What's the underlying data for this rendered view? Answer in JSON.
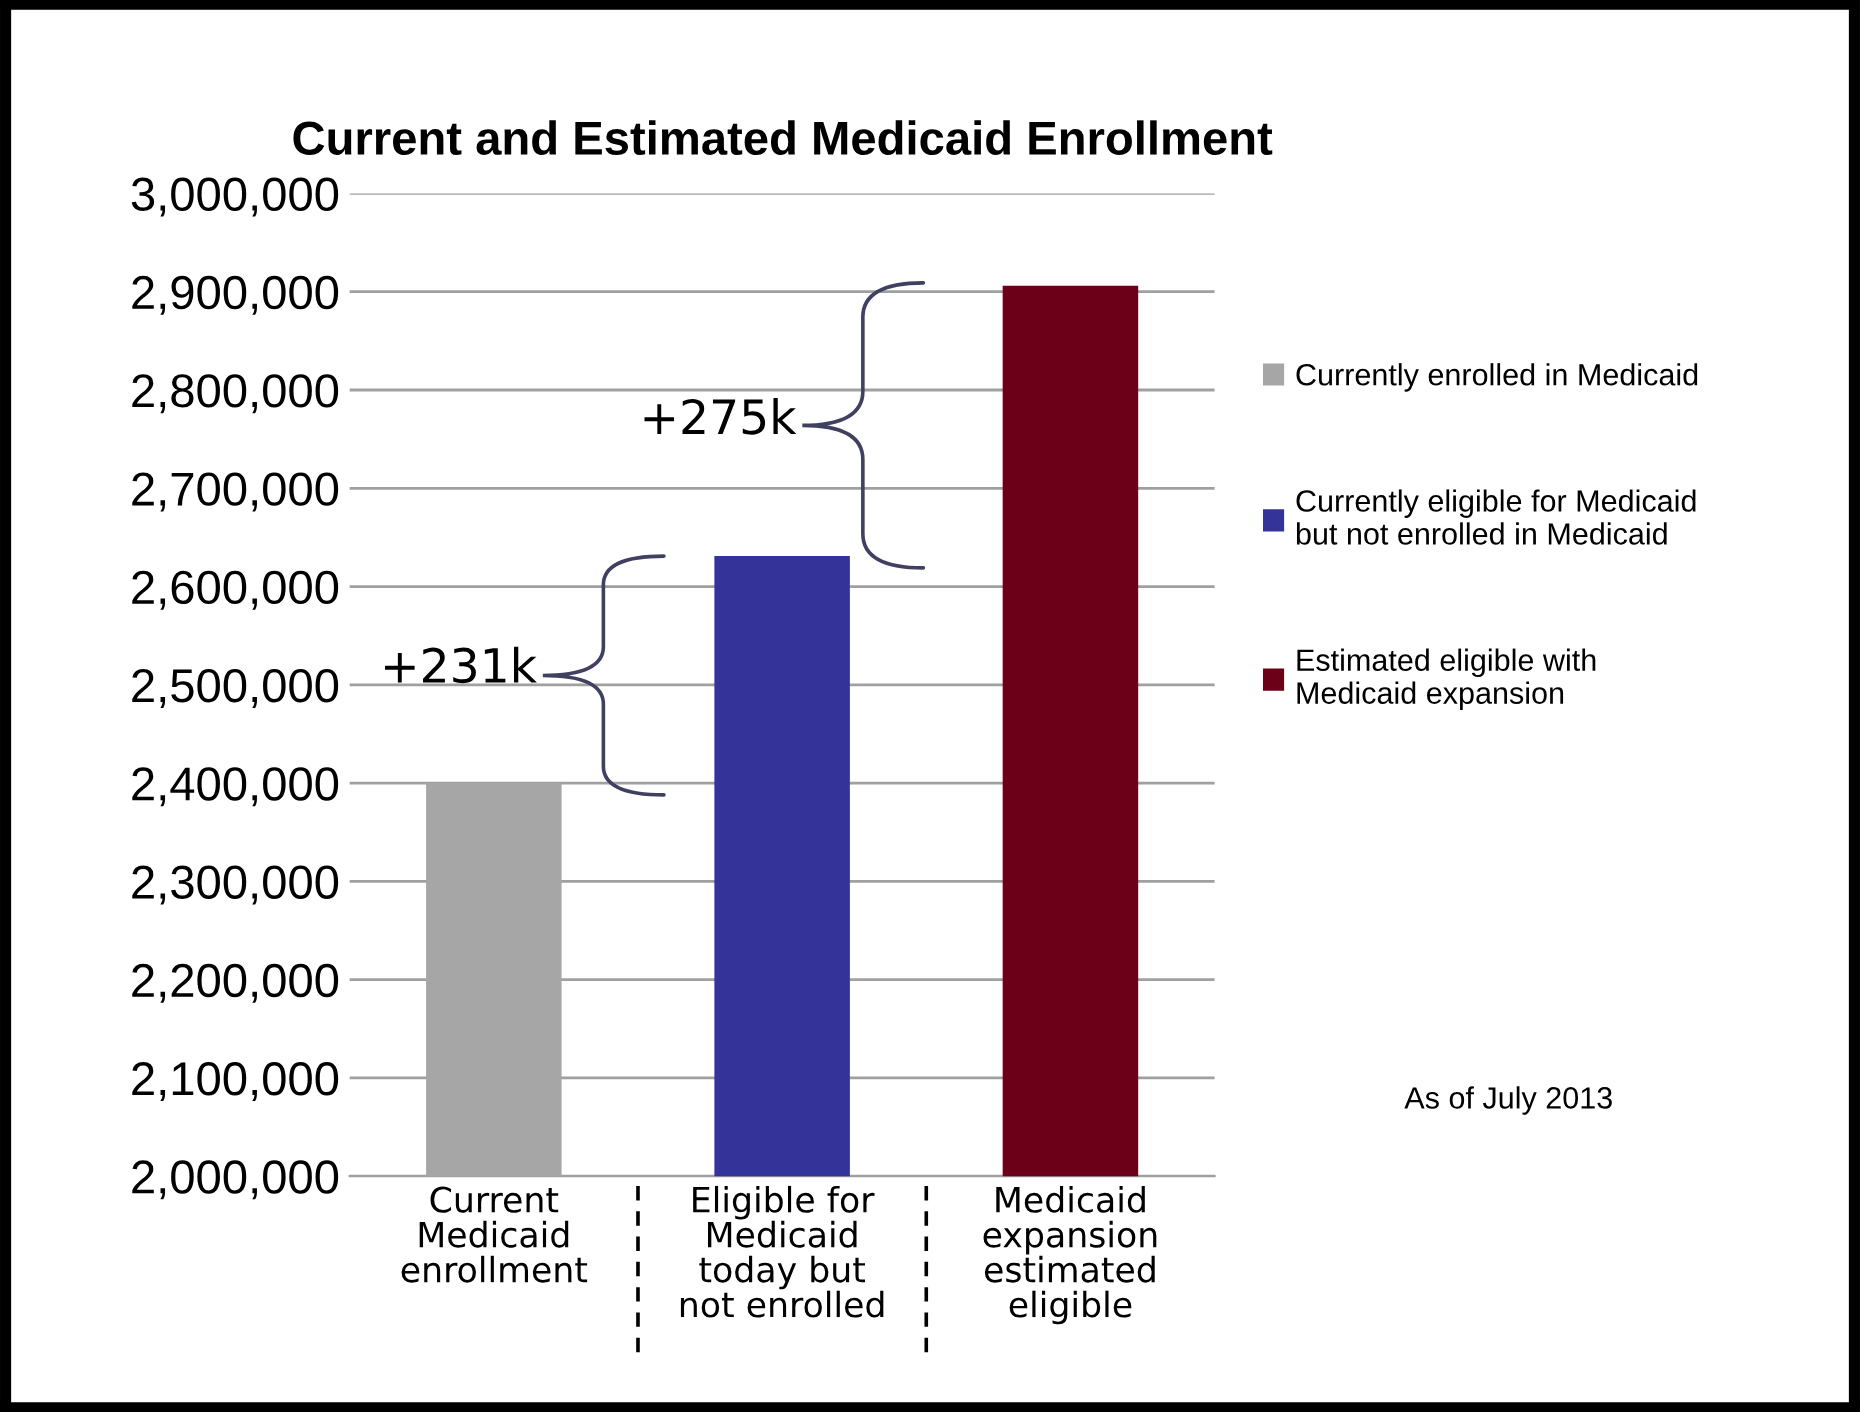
{
  "chart_data": {
    "type": "bar",
    "title": "Current and Estimated Medicaid Enrollment",
    "categories": [
      "Current\nMedicaid\nenrollment",
      "Eligible for\nMedicaid\ntoday but\nnot enrolled",
      "Medicaid\nexpansion\nestimated\neligible"
    ],
    "series": [
      {
        "name": "Currently enrolled in Medicaid",
        "color": "#a6a6a6",
        "values": [
          2400000,
          null,
          null
        ]
      },
      {
        "name": "Currently eligible for Medicaid\nbut not enrolled in Medicaid",
        "color": "#333399",
        "values": [
          null,
          2631000,
          null
        ]
      },
      {
        "name": "Estimated eligible with\nMedicaid expansion",
        "color": "#6d0019",
        "values": [
          null,
          null,
          2906000
        ]
      }
    ],
    "ylim": [
      2000000,
      3000000
    ],
    "yticks": [
      {
        "value": 2000000,
        "label": "2,000,000"
      },
      {
        "value": 2100000,
        "label": "2,100,000"
      },
      {
        "value": 2200000,
        "label": "2,200,000"
      },
      {
        "value": 2300000,
        "label": "2,300,000"
      },
      {
        "value": 2400000,
        "label": "2,400,000"
      },
      {
        "value": 2500000,
        "label": "2,500,000"
      },
      {
        "value": 2600000,
        "label": "2,600,000"
      },
      {
        "value": 2700000,
        "label": "2,700,000"
      },
      {
        "value": 2800000,
        "label": "2,800,000"
      },
      {
        "value": 2900000,
        "label": "2,900,000"
      },
      {
        "value": 3000000,
        "label": "3,000,000"
      }
    ],
    "grid": "y",
    "legend": "right",
    "annotations": [
      "+231k",
      "+275k",
      "As of July 2013"
    ]
  }
}
